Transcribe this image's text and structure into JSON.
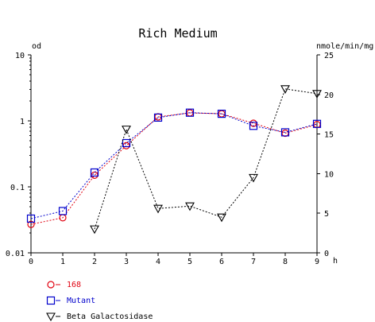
{
  "chart_data": {
    "type": "line",
    "title": "Rich Medium",
    "xlabel": "h",
    "ylabel_left": "od",
    "ylabel_right": "nmole/min/mg",
    "x_ticks": [
      0,
      1,
      2,
      3,
      4,
      5,
      6,
      7,
      8,
      9
    ],
    "x_tick_labels": [
      "0",
      "1",
      "2",
      "3",
      "4",
      "5",
      "6",
      "7",
      "8",
      "9"
    ],
    "xlim": [
      0,
      9
    ],
    "y_left": {
      "scale": "log",
      "lim": [
        0.01,
        10
      ],
      "ticks": [
        0.01,
        0.1,
        1,
        10
      ],
      "tick_labels": [
        "0.01",
        "0.1",
        "1",
        "10"
      ]
    },
    "y_right": {
      "scale": "linear",
      "lim": [
        0,
        25
      ],
      "ticks": [
        0,
        5,
        10,
        15,
        20,
        25
      ],
      "tick_labels": [
        "0",
        "5",
        "10",
        "15",
        "20",
        "25"
      ]
    },
    "grid": false,
    "legend_position": "bottom-left",
    "series": [
      {
        "name": "168",
        "axis": "left",
        "marker": "circle",
        "color": "#e0000f",
        "x": [
          0,
          1,
          2,
          3,
          4,
          5,
          6,
          7,
          8,
          9
        ],
        "values": [
          0.027,
          0.034,
          0.15,
          0.42,
          1.15,
          1.32,
          1.28,
          0.92,
          0.65,
          0.88
        ]
      },
      {
        "name": "Mutant",
        "axis": "left",
        "marker": "square",
        "color": "#0000cc",
        "x": [
          0,
          1,
          2,
          3,
          4,
          5,
          6,
          7,
          8,
          9
        ],
        "values": [
          0.033,
          0.043,
          0.165,
          0.46,
          1.12,
          1.33,
          1.28,
          0.84,
          0.67,
          0.9
        ]
      },
      {
        "name": "Beta Galactosidase",
        "axis": "right",
        "marker": "triangle-down",
        "color": "#000000",
        "x": [
          2,
          3,
          4,
          5,
          6,
          7,
          8,
          9
        ],
        "values": [
          3.0,
          15.6,
          5.6,
          5.9,
          4.5,
          9.5,
          20.7,
          20.1
        ]
      }
    ]
  }
}
